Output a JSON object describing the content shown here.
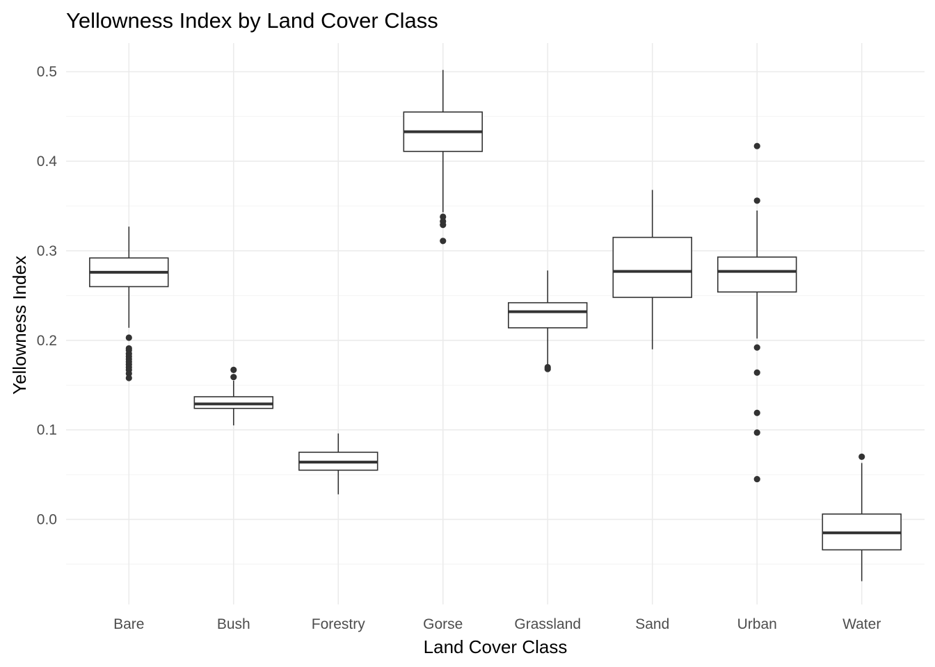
{
  "chart_data": {
    "type": "boxplot",
    "title": "Yellowness Index by Land Cover Class",
    "xlabel": "Land Cover Class",
    "ylabel": "Yellowness Index",
    "ylim": [
      -0.095,
      0.532
    ],
    "yticks": [
      0.0,
      0.1,
      0.2,
      0.3,
      0.4,
      0.5
    ],
    "ytick_labels": [
      "0.0",
      "0.1",
      "0.2",
      "0.3",
      "0.4",
      "0.5"
    ],
    "grid": true,
    "legend": "none",
    "categories": [
      "Bare",
      "Bush",
      "Forestry",
      "Gorse",
      "Grassland",
      "Sand",
      "Urban",
      "Water"
    ],
    "boxes": [
      {
        "category": "Bare",
        "whisker_low": 0.214,
        "q1": 0.26,
        "median": 0.276,
        "q3": 0.292,
        "whisker_high": 0.327,
        "outliers": [
          0.203,
          0.191,
          0.189,
          0.185,
          0.182,
          0.179,
          0.176,
          0.173,
          0.17,
          0.167,
          0.163,
          0.158
        ]
      },
      {
        "category": "Bush",
        "whisker_low": 0.105,
        "q1": 0.124,
        "median": 0.129,
        "q3": 0.137,
        "whisker_high": 0.155,
        "outliers": [
          0.167,
          0.159
        ]
      },
      {
        "category": "Forestry",
        "whisker_low": 0.028,
        "q1": 0.055,
        "median": 0.064,
        "q3": 0.075,
        "whisker_high": 0.096,
        "outliers": []
      },
      {
        "category": "Gorse",
        "whisker_low": 0.343,
        "q1": 0.411,
        "median": 0.433,
        "q3": 0.455,
        "whisker_high": 0.502,
        "outliers": [
          0.338,
          0.333,
          0.329,
          0.311
        ]
      },
      {
        "category": "Grassland",
        "whisker_low": 0.172,
        "q1": 0.214,
        "median": 0.232,
        "q3": 0.242,
        "whisker_high": 0.278,
        "outliers": [
          0.17,
          0.168
        ]
      },
      {
        "category": "Sand",
        "whisker_low": 0.19,
        "q1": 0.248,
        "median": 0.277,
        "q3": 0.315,
        "whisker_high": 0.368,
        "outliers": []
      },
      {
        "category": "Urban",
        "whisker_low": 0.202,
        "q1": 0.254,
        "median": 0.277,
        "q3": 0.293,
        "whisker_high": 0.345,
        "outliers": [
          0.417,
          0.356,
          0.192,
          0.164,
          0.119,
          0.097,
          0.045
        ]
      },
      {
        "category": "Water",
        "whisker_low": -0.069,
        "q1": -0.034,
        "median": -0.015,
        "q3": 0.006,
        "whisker_high": 0.063,
        "outliers": [
          0.07
        ]
      }
    ]
  }
}
